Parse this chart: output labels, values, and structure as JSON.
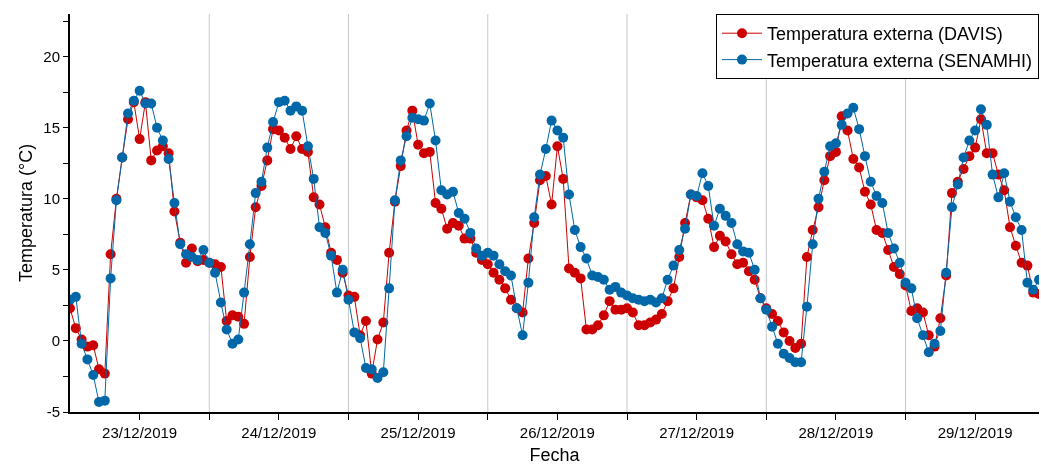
{
  "chart_data": {
    "type": "line",
    "xlabel": "Fecha",
    "ylabel": "Temperatura (°C)",
    "x": [
      "2019-12-23T00:00",
      "2019-12-23T01:00",
      "2019-12-23T02:00",
      "2019-12-23T03:00",
      "2019-12-23T04:00",
      "2019-12-23T05:00",
      "2019-12-23T06:00",
      "2019-12-23T07:00",
      "2019-12-23T08:00",
      "2019-12-23T09:00",
      "2019-12-23T10:00",
      "2019-12-23T11:00",
      "2019-12-23T12:00",
      "2019-12-23T13:00",
      "2019-12-23T14:00",
      "2019-12-23T15:00",
      "2019-12-23T16:00",
      "2019-12-23T17:00",
      "2019-12-23T18:00",
      "2019-12-23T19:00",
      "2019-12-23T20:00",
      "2019-12-23T21:00",
      "2019-12-23T22:00",
      "2019-12-23T23:00",
      "2019-12-24T00:00",
      "2019-12-24T01:00",
      "2019-12-24T02:00",
      "2019-12-24T03:00",
      "2019-12-24T04:00",
      "2019-12-24T05:00",
      "2019-12-24T06:00",
      "2019-12-24T07:00",
      "2019-12-24T08:00",
      "2019-12-24T09:00",
      "2019-12-24T10:00",
      "2019-12-24T11:00",
      "2019-12-24T12:00",
      "2019-12-24T13:00",
      "2019-12-24T14:00",
      "2019-12-24T15:00",
      "2019-12-24T16:00",
      "2019-12-24T17:00",
      "2019-12-24T18:00",
      "2019-12-24T19:00",
      "2019-12-24T20:00",
      "2019-12-24T21:00",
      "2019-12-24T22:00",
      "2019-12-24T23:00",
      "2019-12-25T00:00",
      "2019-12-25T01:00",
      "2019-12-25T02:00",
      "2019-12-25T03:00",
      "2019-12-25T04:00",
      "2019-12-25T05:00",
      "2019-12-25T06:00",
      "2019-12-25T07:00",
      "2019-12-25T08:00",
      "2019-12-25T09:00",
      "2019-12-25T10:00",
      "2019-12-25T11:00",
      "2019-12-25T12:00",
      "2019-12-25T13:00",
      "2019-12-25T14:00",
      "2019-12-25T15:00",
      "2019-12-25T16:00",
      "2019-12-25T17:00",
      "2019-12-25T18:00",
      "2019-12-25T19:00",
      "2019-12-25T20:00",
      "2019-12-25T21:00",
      "2019-12-25T22:00",
      "2019-12-25T23:00",
      "2019-12-26T00:00",
      "2019-12-26T01:00",
      "2019-12-26T02:00",
      "2019-12-26T03:00",
      "2019-12-26T04:00",
      "2019-12-26T05:00",
      "2019-12-26T06:00",
      "2019-12-26T07:00",
      "2019-12-26T08:00",
      "2019-12-26T09:00",
      "2019-12-26T10:00",
      "2019-12-26T11:00",
      "2019-12-26T12:00",
      "2019-12-26T13:00",
      "2019-12-26T14:00",
      "2019-12-26T15:00",
      "2019-12-26T16:00",
      "2019-12-26T17:00",
      "2019-12-26T18:00",
      "2019-12-26T19:00",
      "2019-12-26T20:00",
      "2019-12-26T21:00",
      "2019-12-26T22:00",
      "2019-12-26T23:00",
      "2019-12-27T00:00",
      "2019-12-27T01:00",
      "2019-12-27T02:00",
      "2019-12-27T03:00",
      "2019-12-27T04:00",
      "2019-12-27T05:00",
      "2019-12-27T06:00",
      "2019-12-27T07:00",
      "2019-12-27T08:00",
      "2019-12-27T09:00",
      "2019-12-27T10:00",
      "2019-12-27T11:00",
      "2019-12-27T12:00",
      "2019-12-27T13:00",
      "2019-12-27T14:00",
      "2019-12-27T15:00",
      "2019-12-27T16:00",
      "2019-12-27T17:00",
      "2019-12-27T18:00",
      "2019-12-27T19:00",
      "2019-12-27T20:00",
      "2019-12-27T21:00",
      "2019-12-27T22:00",
      "2019-12-27T23:00",
      "2019-12-28T00:00",
      "2019-12-28T01:00",
      "2019-12-28T02:00",
      "2019-12-28T03:00",
      "2019-12-28T04:00",
      "2019-12-28T05:00",
      "2019-12-28T06:00",
      "2019-12-28T07:00",
      "2019-12-28T08:00",
      "2019-12-28T09:00",
      "2019-12-28T10:00",
      "2019-12-28T11:00",
      "2019-12-28T12:00",
      "2019-12-28T13:00",
      "2019-12-28T14:00",
      "2019-12-28T15:00",
      "2019-12-28T16:00",
      "2019-12-28T17:00",
      "2019-12-28T18:00",
      "2019-12-28T19:00",
      "2019-12-28T20:00",
      "2019-12-28T21:00",
      "2019-12-28T22:00",
      "2019-12-28T23:00",
      "2019-12-29T00:00",
      "2019-12-29T01:00",
      "2019-12-29T02:00",
      "2019-12-29T03:00",
      "2019-12-29T04:00",
      "2019-12-29T05:00",
      "2019-12-29T06:00",
      "2019-12-29T07:00",
      "2019-12-29T08:00",
      "2019-12-29T09:00",
      "2019-12-29T10:00",
      "2019-12-29T11:00",
      "2019-12-29T12:00",
      "2019-12-29T13:00",
      "2019-12-29T14:00",
      "2019-12-29T15:00",
      "2019-12-29T16:00",
      "2019-12-29T17:00",
      "2019-12-29T18:00",
      "2019-12-29T19:00",
      "2019-12-29T20:00",
      "2019-12-29T21:00",
      "2019-12-29T22:00",
      "2019-12-29T23:00"
    ],
    "series": [
      {
        "name": "Temperatura externa (DAVIS)",
        "color": "#cc0000",
        "values": [
          2.3,
          0.9,
          0.1,
          -0.4,
          -0.3,
          -2.0,
          -2.3,
          6.1,
          10.0,
          12.9,
          15.6,
          16.8,
          14.2,
          16.8,
          12.7,
          13.4,
          13.7,
          13.2,
          9.1,
          6.9,
          5.5,
          6.5,
          5.6,
          5.7,
          5.5,
          5.4,
          5.2,
          1.4,
          1.8,
          1.7,
          1.2,
          5.9,
          9.4,
          10.9,
          12.7,
          14.9,
          14.8,
          14.3,
          13.5,
          14.4,
          13.5,
          13.3,
          10.1,
          9.6,
          8.0,
          6.2,
          5.7,
          4.8,
          3.2,
          3.1,
          0.4,
          1.4,
          -2.3,
          0.1,
          1.3,
          6.2,
          9.8,
          12.3,
          14.8,
          16.2,
          13.8,
          13.2,
          13.3,
          9.7,
          9.3,
          7.9,
          8.3,
          8.1,
          7.2,
          7.2,
          6.2,
          5.7,
          5.4,
          4.8,
          4.3,
          3.7,
          2.9,
          2.3,
          2.0,
          5.8,
          8.3,
          11.3,
          11.6,
          9.6,
          13.7,
          11.4,
          5.1,
          4.8,
          4.4,
          0.8,
          0.8,
          1.1,
          1.8,
          2.8,
          2.2,
          2.2,
          2.3,
          2.0,
          1.1,
          1.1,
          1.3,
          1.5,
          1.9,
          2.8,
          3.7,
          5.9,
          8.3,
          10.3,
          10.1,
          9.9,
          8.6,
          6.6,
          7.4,
          7.0,
          6.1,
          5.4,
          5.5,
          4.9,
          4.3,
          3.0,
          2.3,
          1.9,
          1.4,
          0.6,
          0.0,
          -0.5,
          -0.2,
          5.9,
          7.8,
          9.4,
          11.3,
          13.0,
          13.3,
          15.8,
          14.8,
          12.8,
          12.2,
          10.5,
          9.6,
          7.8,
          7.6,
          6.4,
          5.2,
          4.7,
          3.9,
          2.1,
          2.3,
          2.0,
          0.4,
          -0.4,
          1.6,
          4.6,
          10.4,
          11.2,
          12.1,
          13.0,
          13.6,
          15.6,
          13.2,
          13.2,
          11.7,
          10.6,
          8.0,
          6.7,
          5.5,
          5.3,
          3.4,
          3.3
        ]
      },
      {
        "name": "Temperatura externa (SENAMHI)",
        "color": "#0068a8",
        "values": [
          2.9,
          3.1,
          -0.2,
          -1.3,
          -2.4,
          -4.3,
          -4.2,
          4.4,
          9.9,
          12.9,
          16.0,
          16.9,
          17.6,
          16.7,
          16.7,
          15.0,
          14.1,
          12.8,
          9.7,
          6.8,
          6.1,
          5.9,
          5.7,
          6.4,
          5.5,
          4.8,
          2.7,
          0.8,
          -0.2,
          0.1,
          3.4,
          6.8,
          10.4,
          11.2,
          13.6,
          15.4,
          16.8,
          16.9,
          16.2,
          16.5,
          16.2,
          13.7,
          11.4,
          8.0,
          7.6,
          6.0,
          3.4,
          5.0,
          2.9,
          0.6,
          0.2,
          -1.9,
          -2.0,
          -2.6,
          -2.2,
          3.7,
          9.9,
          12.7,
          14.4,
          15.7,
          15.6,
          15.5,
          16.7,
          14.1,
          10.6,
          10.3,
          10.5,
          9.0,
          8.6,
          7.6,
          6.5,
          6.0,
          6.2,
          6.0,
          5.4,
          4.9,
          4.6,
          2.3,
          0.4,
          4.1,
          8.7,
          11.7,
          13.5,
          15.5,
          14.8,
          14.3,
          10.3,
          7.8,
          6.6,
          5.8,
          4.6,
          4.5,
          4.3,
          3.6,
          3.8,
          3.4,
          3.2,
          3.0,
          2.9,
          2.8,
          2.9,
          2.7,
          3.0,
          4.3,
          5.3,
          6.4,
          7.9,
          10.3,
          10.2,
          11.8,
          10.9,
          8.1,
          9.3,
          8.8,
          8.3,
          6.8,
          6.3,
          6.2,
          5.0,
          3.0,
          2.2,
          1.0,
          -0.2,
          -0.9,
          -1.2,
          -1.5,
          -1.5,
          2.4,
          6.8,
          10.0,
          11.9,
          13.7,
          13.9,
          15.2,
          16.0,
          16.4,
          14.9,
          13.0,
          11.2,
          10.2,
          9.7,
          7.6,
          6.5,
          5.5,
          4.1,
          3.7,
          1.6,
          0.4,
          -0.8,
          -0.2,
          0.7,
          4.8,
          9.4,
          11.0,
          12.9,
          14.1,
          14.8,
          16.3,
          15.2,
          11.7,
          10.1,
          11.8,
          9.8,
          8.7,
          7.8,
          4.1,
          3.6,
          4.3
        ]
      }
    ],
    "xlim": [
      "2019-12-23T00:00",
      "2019-12-29T23:00"
    ],
    "xticks": [
      {
        "value": "2019-12-23T12:00",
        "label": "23/12/2019"
      },
      {
        "value": "2019-12-24T00:00",
        "label": null
      },
      {
        "value": "2019-12-24T12:00",
        "label": "24/12/2019"
      },
      {
        "value": "2019-12-25T00:00",
        "label": null
      },
      {
        "value": "2019-12-25T12:00",
        "label": "25/12/2019"
      },
      {
        "value": "2019-12-26T00:00",
        "label": null
      },
      {
        "value": "2019-12-26T12:00",
        "label": "26/12/2019"
      },
      {
        "value": "2019-12-27T00:00",
        "label": null
      },
      {
        "value": "2019-12-27T12:00",
        "label": "27/12/2019"
      },
      {
        "value": "2019-12-28T00:00",
        "label": null
      },
      {
        "value": "2019-12-28T12:00",
        "label": "28/12/2019"
      },
      {
        "value": "2019-12-29T00:00",
        "label": null
      },
      {
        "value": "2019-12-29T12:00",
        "label": "29/12/2019"
      }
    ],
    "ylim": [
      -5,
      23
    ],
    "yticks": [
      -5,
      {
        "value": -2.5,
        "label": null
      },
      0,
      {
        "value": 2.5,
        "label": null
      },
      5,
      {
        "value": 7.5,
        "label": null
      },
      10,
      {
        "value": 12.5,
        "label": null
      },
      15,
      {
        "value": 17.5,
        "label": null
      },
      20,
      {
        "value": 22.5,
        "label": null
      }
    ],
    "grid": "x",
    "legend": "top right",
    "marker": "circle",
    "line_style": "solid"
  }
}
